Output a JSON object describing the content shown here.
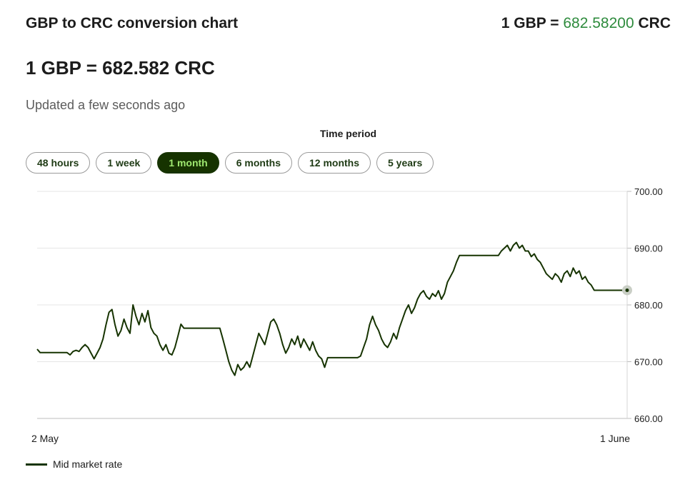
{
  "header": {
    "title": "GBP to CRC conversion chart",
    "ticker_prefix": "1 GBP =",
    "ticker_value": "682.58200",
    "ticker_suffix": "CRC",
    "ticker_color": "#2e8b3d"
  },
  "rate_display": "1 GBP = 682.582 CRC",
  "updated_text": "Updated a few seconds ago",
  "time_period": {
    "label": "Time period",
    "options": [
      "48 hours",
      "1 week",
      "1 month",
      "6 months",
      "12 months",
      "5 years"
    ],
    "selected": "1 month"
  },
  "legend": {
    "label": "Mid market rate",
    "color": "#163300"
  },
  "chart_data": {
    "type": "line",
    "title": "",
    "xlabel": "",
    "ylabel": "",
    "x_tick_labels": [
      "2 May",
      "1 June"
    ],
    "y_tick_labels": [
      "700.00",
      "690.00",
      "680.00",
      "670.00",
      "660.00"
    ],
    "ylim": [
      660,
      700
    ],
    "grid": true,
    "legend_position": "bottom-left",
    "line_color": "#163300",
    "series": [
      {
        "name": "Mid market rate",
        "values": [
          672.2,
          671.6,
          671.6,
          671.6,
          671.6,
          671.6,
          671.6,
          671.6,
          671.6,
          671.6,
          671.6,
          671.2,
          671.8,
          672.0,
          671.8,
          672.5,
          673.0,
          672.5,
          671.5,
          670.5,
          671.5,
          672.5,
          674.0,
          676.5,
          678.7,
          679.2,
          676.5,
          674.5,
          675.5,
          677.5,
          676.0,
          675.0,
          680.0,
          678.0,
          676.5,
          678.5,
          677.0,
          679.0,
          676.0,
          675.0,
          674.5,
          673.0,
          672.0,
          673.0,
          671.5,
          671.2,
          672.5,
          674.5,
          676.6,
          675.9,
          675.9,
          675.9,
          675.9,
          675.9,
          675.9,
          675.9,
          675.9,
          675.9,
          675.9,
          675.9,
          675.9,
          675.9,
          674.0,
          672.0,
          670.0,
          668.5,
          667.6,
          669.5,
          668.5,
          669.0,
          670.0,
          669.0,
          671.0,
          673.0,
          675.0,
          674.0,
          673.0,
          675.0,
          677.0,
          677.5,
          676.5,
          675.0,
          673.0,
          671.5,
          672.5,
          674.0,
          673.0,
          674.5,
          672.5,
          674.0,
          673.0,
          672.0,
          673.5,
          672.0,
          671.0,
          670.5,
          669.0,
          670.7,
          670.7,
          670.7,
          670.7,
          670.7,
          670.7,
          670.7,
          670.7,
          670.7,
          670.7,
          670.7,
          671.0,
          672.5,
          674.0,
          676.5,
          678.0,
          676.5,
          675.5,
          674.0,
          673.0,
          672.5,
          673.5,
          675.0,
          674.0,
          676.0,
          677.5,
          679.0,
          680.0,
          678.5,
          679.5,
          681.0,
          682.0,
          682.5,
          681.5,
          681.0,
          682.0,
          681.5,
          682.5,
          681.0,
          682.0,
          684.0,
          685.0,
          686.0,
          687.5,
          688.7,
          688.7,
          688.7,
          688.7,
          688.7,
          688.7,
          688.7,
          688.7,
          688.7,
          688.7,
          688.7,
          688.7,
          688.7,
          688.7,
          689.5,
          690.0,
          690.5,
          689.5,
          690.5,
          691.0,
          690.0,
          690.5,
          689.5,
          689.5,
          688.5,
          689.0,
          688.0,
          687.5,
          686.5,
          685.5,
          685.0,
          684.5,
          685.5,
          685.0,
          684.0,
          685.5,
          686.0,
          685.0,
          686.5,
          685.5,
          686.0,
          684.5,
          685.0,
          684.0,
          683.5,
          682.582,
          682.582,
          682.582,
          682.582,
          682.582,
          682.582,
          682.582,
          682.582,
          682.582,
          682.582,
          682.582,
          682.582
        ]
      }
    ],
    "current_point": 682.582
  }
}
